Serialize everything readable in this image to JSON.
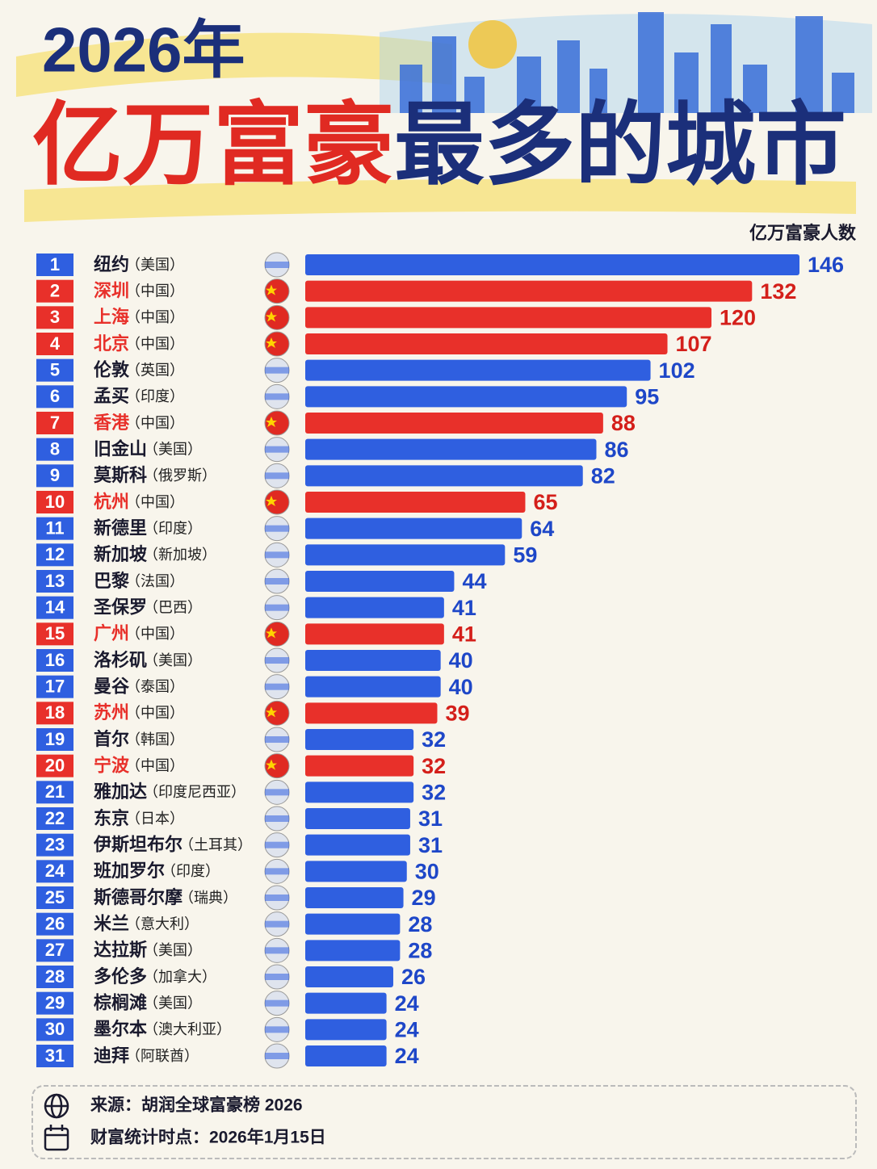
{
  "chart_data": {
    "type": "bar",
    "orientation": "horizontal",
    "title": {
      "year": "2026年",
      "highlight": "亿万富豪",
      "rest": "最多的城市"
    },
    "title_colors": {
      "year": "#1b2f7a",
      "highlight": "#e02a22",
      "rest": "#1b2f7a"
    },
    "value_axis_label": "亿万富豪人数",
    "ranks": [
      1,
      2,
      3,
      4,
      5,
      6,
      7,
      8,
      9,
      10,
      11,
      12,
      13,
      14,
      15,
      16,
      17,
      18,
      19,
      20,
      21,
      22,
      23,
      24,
      25,
      26,
      27,
      28,
      29,
      30,
      31
    ],
    "categories": [
      "纽约",
      "深圳",
      "上海",
      "北京",
      "伦敦",
      "孟买",
      "香港",
      "旧金山",
      "莫斯科",
      "杭州",
      "新德里",
      "新加坡",
      "巴黎",
      "圣保罗",
      "广州",
      "洛杉矶",
      "曼谷",
      "苏州",
      "首尔",
      "宁波",
      "雅加达",
      "东京",
      "伊斯坦布尔",
      "班加罗尔",
      "斯德哥尔摩",
      "米兰",
      "达拉斯",
      "多伦多",
      "棕榈滩",
      "墨尔本",
      "迪拜"
    ],
    "countries": [
      "（美国）",
      "（中国）",
      "（中国）",
      "（中国）",
      "（英国）",
      "（印度）",
      "（中国）",
      "（美国）",
      "（俄罗斯）",
      "（中国）",
      "（印度）",
      "（新加坡）",
      "（法国）",
      "（巴西）",
      "（中国）",
      "（美国）",
      "（泰国）",
      "（中国）",
      "（韩国）",
      "（中国）",
      "（印度尼西亚）",
      "（日本）",
      "（土耳其）",
      "（印度）",
      "（瑞典）",
      "（意大利）",
      "（美国）",
      "（加拿大）",
      "（美国）",
      "（澳大利亚）",
      "（阿联酋）"
    ],
    "values": [
      146,
      132,
      120,
      107,
      102,
      95,
      88,
      86,
      82,
      65,
      64,
      59,
      44,
      41,
      41,
      40,
      40,
      39,
      32,
      32,
      32,
      31,
      31,
      30,
      29,
      28,
      28,
      26,
      24,
      24,
      24
    ],
    "colors": [
      "#2f5fe0",
      "#e8302a",
      "#e8302a",
      "#e8302a",
      "#2f5fe0",
      "#2f5fe0",
      "#e8302a",
      "#2f5fe0",
      "#2f5fe0",
      "#e8302a",
      "#2f5fe0",
      "#2f5fe0",
      "#2f5fe0",
      "#2f5fe0",
      "#e8302a",
      "#2f5fe0",
      "#2f5fe0",
      "#e8302a",
      "#2f5fe0",
      "#e8302a",
      "#2f5fe0",
      "#2f5fe0",
      "#2f5fe0",
      "#2f5fe0",
      "#2f5fe0",
      "#2f5fe0",
      "#2f5fe0",
      "#2f5fe0",
      "#2f5fe0",
      "#2f5fe0",
      "#2f5fe0"
    ],
    "footer": {
      "source": "来源：胡润全球富豪榜 2026",
      "date": "财富统计时点：2026年1月15日"
    }
  }
}
